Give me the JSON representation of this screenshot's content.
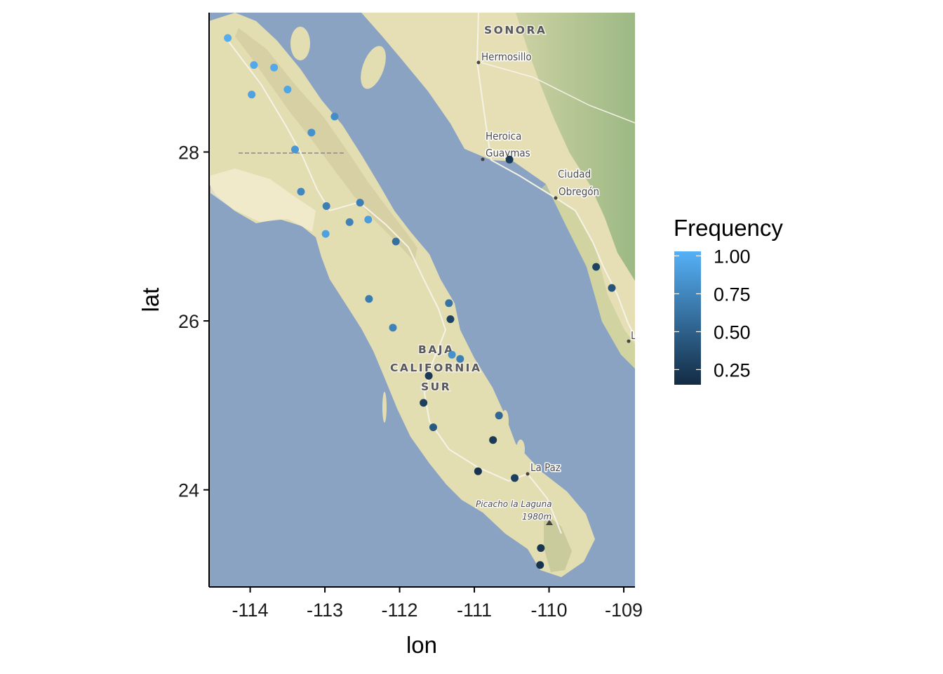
{
  "chart_data": {
    "type": "scatter",
    "xlabel": "lon",
    "ylabel": "lat",
    "xlim": [
      -114.55,
      -108.85
    ],
    "ylim": [
      22.85,
      29.65
    ],
    "xticks": [
      -114,
      -113,
      -112,
      -111,
      -110,
      -109
    ],
    "xtick_labels": [
      "-114",
      "-113",
      "-112",
      "-111",
      "-110",
      "-109"
    ],
    "yticks": [
      24,
      26,
      28
    ],
    "ytick_labels": [
      "24",
      "26",
      "28"
    ],
    "grid": false,
    "legend": {
      "title": "Frequency",
      "placement": "right",
      "min": 0.15,
      "max": 1.03,
      "breaks": [
        1.0,
        0.75,
        0.5,
        0.25
      ],
      "break_labels": [
        "1.00",
        "0.75",
        "0.50",
        "0.25"
      ],
      "color_low": "#132B43",
      "color_high": "#56B1F7"
    },
    "points": [
      {
        "lon": -114.3,
        "lat": 29.35,
        "freq": 1.0
      },
      {
        "lon": -113.95,
        "lat": 29.03,
        "freq": 0.97
      },
      {
        "lon": -113.68,
        "lat": 29.0,
        "freq": 0.97
      },
      {
        "lon": -113.98,
        "lat": 28.68,
        "freq": 0.93
      },
      {
        "lon": -113.5,
        "lat": 28.74,
        "freq": 0.95
      },
      {
        "lon": -112.87,
        "lat": 28.42,
        "freq": 0.8
      },
      {
        "lon": -113.18,
        "lat": 28.23,
        "freq": 0.82
      },
      {
        "lon": -113.4,
        "lat": 28.03,
        "freq": 0.86
      },
      {
        "lon": -113.32,
        "lat": 27.53,
        "freq": 0.76
      },
      {
        "lon": -112.98,
        "lat": 27.36,
        "freq": 0.7
      },
      {
        "lon": -112.53,
        "lat": 27.4,
        "freq": 0.7
      },
      {
        "lon": -112.67,
        "lat": 27.17,
        "freq": 0.72
      },
      {
        "lon": -112.42,
        "lat": 27.2,
        "freq": 0.9
      },
      {
        "lon": -112.99,
        "lat": 27.03,
        "freq": 0.92
      },
      {
        "lon": -112.05,
        "lat": 26.94,
        "freq": 0.6
      },
      {
        "lon": -112.41,
        "lat": 26.26,
        "freq": 0.68
      },
      {
        "lon": -111.34,
        "lat": 26.21,
        "freq": 0.62
      },
      {
        "lon": -111.32,
        "lat": 26.02,
        "freq": 0.3
      },
      {
        "lon": -112.09,
        "lat": 25.92,
        "freq": 0.72
      },
      {
        "lon": -111.3,
        "lat": 25.6,
        "freq": 0.82
      },
      {
        "lon": -111.19,
        "lat": 25.55,
        "freq": 0.7
      },
      {
        "lon": -111.61,
        "lat": 25.35,
        "freq": 0.25
      },
      {
        "lon": -111.68,
        "lat": 25.03,
        "freq": 0.28
      },
      {
        "lon": -110.67,
        "lat": 24.88,
        "freq": 0.55
      },
      {
        "lon": -111.55,
        "lat": 24.74,
        "freq": 0.45
      },
      {
        "lon": -110.75,
        "lat": 24.59,
        "freq": 0.25
      },
      {
        "lon": -110.95,
        "lat": 24.22,
        "freq": 0.2
      },
      {
        "lon": -110.46,
        "lat": 24.14,
        "freq": 0.28
      },
      {
        "lon": -110.11,
        "lat": 23.31,
        "freq": 0.22
      },
      {
        "lon": -110.12,
        "lat": 23.11,
        "freq": 0.2
      },
      {
        "lon": -110.53,
        "lat": 27.91,
        "freq": 0.24
      },
      {
        "lon": -109.37,
        "lat": 26.64,
        "freq": 0.3
      },
      {
        "lon": -109.16,
        "lat": 26.39,
        "freq": 0.42
      }
    ]
  },
  "map_labels": {
    "sonora": "SONORA",
    "hermosillo": "Hermosillo",
    "heroica": "Heroica",
    "guaymas": "Guaymas",
    "ciudad": "Ciudad",
    "obregon": "Obregón",
    "baja": "BAJA",
    "california": "CALIFORNIA",
    "sur": "SUR",
    "lapaz": "La Paz",
    "peak_name": "Picacho la Laguna",
    "peak_elev": "1980m",
    "edge_letter": "L"
  },
  "colors": {
    "water": "#8aa3c2",
    "land": "#e3ddb2",
    "panel_border": "#000000"
  }
}
